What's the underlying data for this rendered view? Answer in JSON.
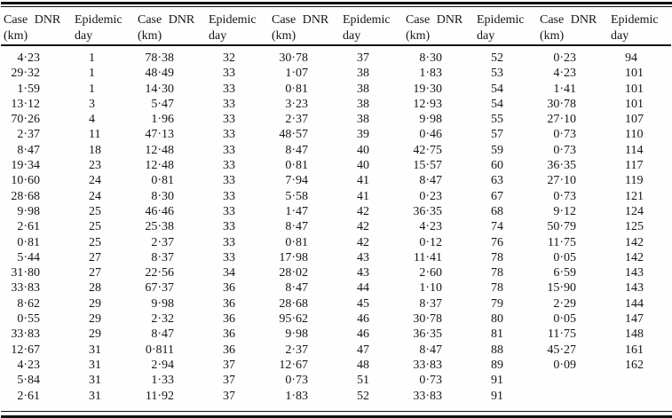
{
  "table": {
    "row_count": 23,
    "header_dnr": {
      "line1": "Case DNR",
      "line2": "(km)"
    },
    "header_day": {
      "line1": "Epidemic",
      "line2": "day"
    },
    "pairs": [
      {
        "rows": [
          {
            "dnr": "4·23",
            "day": "1"
          },
          {
            "dnr": "29·32",
            "day": "1"
          },
          {
            "dnr": "1·59",
            "day": "1"
          },
          {
            "dnr": "13·12",
            "day": "3"
          },
          {
            "dnr": "70·26",
            "day": "4"
          },
          {
            "dnr": "2·37",
            "day": "11"
          },
          {
            "dnr": "8·47",
            "day": "18"
          },
          {
            "dnr": "19·34",
            "day": "23"
          },
          {
            "dnr": "10·60",
            "day": "24"
          },
          {
            "dnr": "28·68",
            "day": "24"
          },
          {
            "dnr": "9·98",
            "day": "25"
          },
          {
            "dnr": "2·61",
            "day": "25"
          },
          {
            "dnr": "0·81",
            "day": "25"
          },
          {
            "dnr": "5·44",
            "day": "27"
          },
          {
            "dnr": "31·80",
            "day": "27"
          },
          {
            "dnr": "33·83",
            "day": "28"
          },
          {
            "dnr": "8·62",
            "day": "29"
          },
          {
            "dnr": "0·55",
            "day": "29"
          },
          {
            "dnr": "33·83",
            "day": "29"
          },
          {
            "dnr": "12·67",
            "day": "31"
          },
          {
            "dnr": "4·23",
            "day": "31"
          },
          {
            "dnr": "5·84",
            "day": "31"
          },
          {
            "dnr": "2·61",
            "day": "31"
          }
        ]
      },
      {
        "rows": [
          {
            "dnr": "78·38",
            "day": "32"
          },
          {
            "dnr": "48·49",
            "day": "33"
          },
          {
            "dnr": "14·30",
            "day": "33"
          },
          {
            "dnr": "5·47",
            "day": "33"
          },
          {
            "dnr": "1·96",
            "day": "33"
          },
          {
            "dnr": "47·13",
            "day": "33"
          },
          {
            "dnr": "12·48",
            "day": "33"
          },
          {
            "dnr": "12·48",
            "day": "33"
          },
          {
            "dnr": "0·81",
            "day": "33"
          },
          {
            "dnr": "8·30",
            "day": "33"
          },
          {
            "dnr": "46·46",
            "day": "33"
          },
          {
            "dnr": "25·38",
            "day": "33"
          },
          {
            "dnr": "2·37",
            "day": "33"
          },
          {
            "dnr": "8·37",
            "day": "33"
          },
          {
            "dnr": "22·56",
            "day": "34"
          },
          {
            "dnr": "67·37",
            "day": "36"
          },
          {
            "dnr": "9·98",
            "day": "36"
          },
          {
            "dnr": "2·32",
            "day": "36"
          },
          {
            "dnr": "8·47",
            "day": "36"
          },
          {
            "dnr": "0·811",
            "day": "36"
          },
          {
            "dnr": "2·94",
            "day": "37"
          },
          {
            "dnr": "1·33",
            "day": "37"
          },
          {
            "dnr": "11·92",
            "day": "37"
          }
        ]
      },
      {
        "rows": [
          {
            "dnr": "30·78",
            "day": "37"
          },
          {
            "dnr": "1·07",
            "day": "38"
          },
          {
            "dnr": "0·81",
            "day": "38"
          },
          {
            "dnr": "3·23",
            "day": "38"
          },
          {
            "dnr": "2·37",
            "day": "38"
          },
          {
            "dnr": "48·57",
            "day": "39"
          },
          {
            "dnr": "8·47",
            "day": "40"
          },
          {
            "dnr": "0·81",
            "day": "40"
          },
          {
            "dnr": "7·94",
            "day": "41"
          },
          {
            "dnr": "5·58",
            "day": "41"
          },
          {
            "dnr": "1·47",
            "day": "42"
          },
          {
            "dnr": "8·47",
            "day": "42"
          },
          {
            "dnr": "0·81",
            "day": "42"
          },
          {
            "dnr": "17·98",
            "day": "43"
          },
          {
            "dnr": "28·02",
            "day": "43"
          },
          {
            "dnr": "8·47",
            "day": "44"
          },
          {
            "dnr": "28·68",
            "day": "45"
          },
          {
            "dnr": "95·62",
            "day": "46"
          },
          {
            "dnr": "9·98",
            "day": "46"
          },
          {
            "dnr": "2·37",
            "day": "47"
          },
          {
            "dnr": "12·67",
            "day": "48"
          },
          {
            "dnr": "0·73",
            "day": "51"
          },
          {
            "dnr": "1·83",
            "day": "52"
          }
        ]
      },
      {
        "rows": [
          {
            "dnr": "8·30",
            "day": "52"
          },
          {
            "dnr": "1·83",
            "day": "53"
          },
          {
            "dnr": "19·30",
            "day": "54"
          },
          {
            "dnr": "12·93",
            "day": "54"
          },
          {
            "dnr": "9·98",
            "day": "55"
          },
          {
            "dnr": "0·46",
            "day": "57"
          },
          {
            "dnr": "42·75",
            "day": "59"
          },
          {
            "dnr": "15·57",
            "day": "60"
          },
          {
            "dnr": "8·47",
            "day": "63"
          },
          {
            "dnr": "0·23",
            "day": "67"
          },
          {
            "dnr": "36·35",
            "day": "68"
          },
          {
            "dnr": "4·23",
            "day": "74"
          },
          {
            "dnr": "0·12",
            "day": "76"
          },
          {
            "dnr": "11·41",
            "day": "78"
          },
          {
            "dnr": "2·60",
            "day": "78"
          },
          {
            "dnr": "1·10",
            "day": "78"
          },
          {
            "dnr": "8·37",
            "day": "79"
          },
          {
            "dnr": "30·78",
            "day": "80"
          },
          {
            "dnr": "36·35",
            "day": "81"
          },
          {
            "dnr": "8·47",
            "day": "88"
          },
          {
            "dnr": "33·83",
            "day": "89"
          },
          {
            "dnr": "0·73",
            "day": "91"
          },
          {
            "dnr": "33·83",
            "day": "91"
          }
        ]
      },
      {
        "rows": [
          {
            "dnr": "0·23",
            "day": "94"
          },
          {
            "dnr": "4·23",
            "day": "101"
          },
          {
            "dnr": "1·41",
            "day": "101"
          },
          {
            "dnr": "30·78",
            "day": "101"
          },
          {
            "dnr": "27·10",
            "day": "107"
          },
          {
            "dnr": "0·73",
            "day": "110"
          },
          {
            "dnr": "0·73",
            "day": "114"
          },
          {
            "dnr": "36·35",
            "day": "117"
          },
          {
            "dnr": "27·10",
            "day": "119"
          },
          {
            "dnr": "0·73",
            "day": "121"
          },
          {
            "dnr": "9·12",
            "day": "124"
          },
          {
            "dnr": "50·79",
            "day": "125"
          },
          {
            "dnr": "11·75",
            "day": "142"
          },
          {
            "dnr": "0·05",
            "day": "142"
          },
          {
            "dnr": "6·59",
            "day": "143"
          },
          {
            "dnr": "15·90",
            "day": "143"
          },
          {
            "dnr": "2·29",
            "day": "144"
          },
          {
            "dnr": "0·05",
            "day": "147"
          },
          {
            "dnr": "11·75",
            "day": "148"
          },
          {
            "dnr": "45·27",
            "day": "161"
          },
          {
            "dnr": "0·09",
            "day": "162"
          },
          {
            "dnr": "",
            "day": ""
          },
          {
            "dnr": "",
            "day": ""
          }
        ]
      }
    ]
  }
}
